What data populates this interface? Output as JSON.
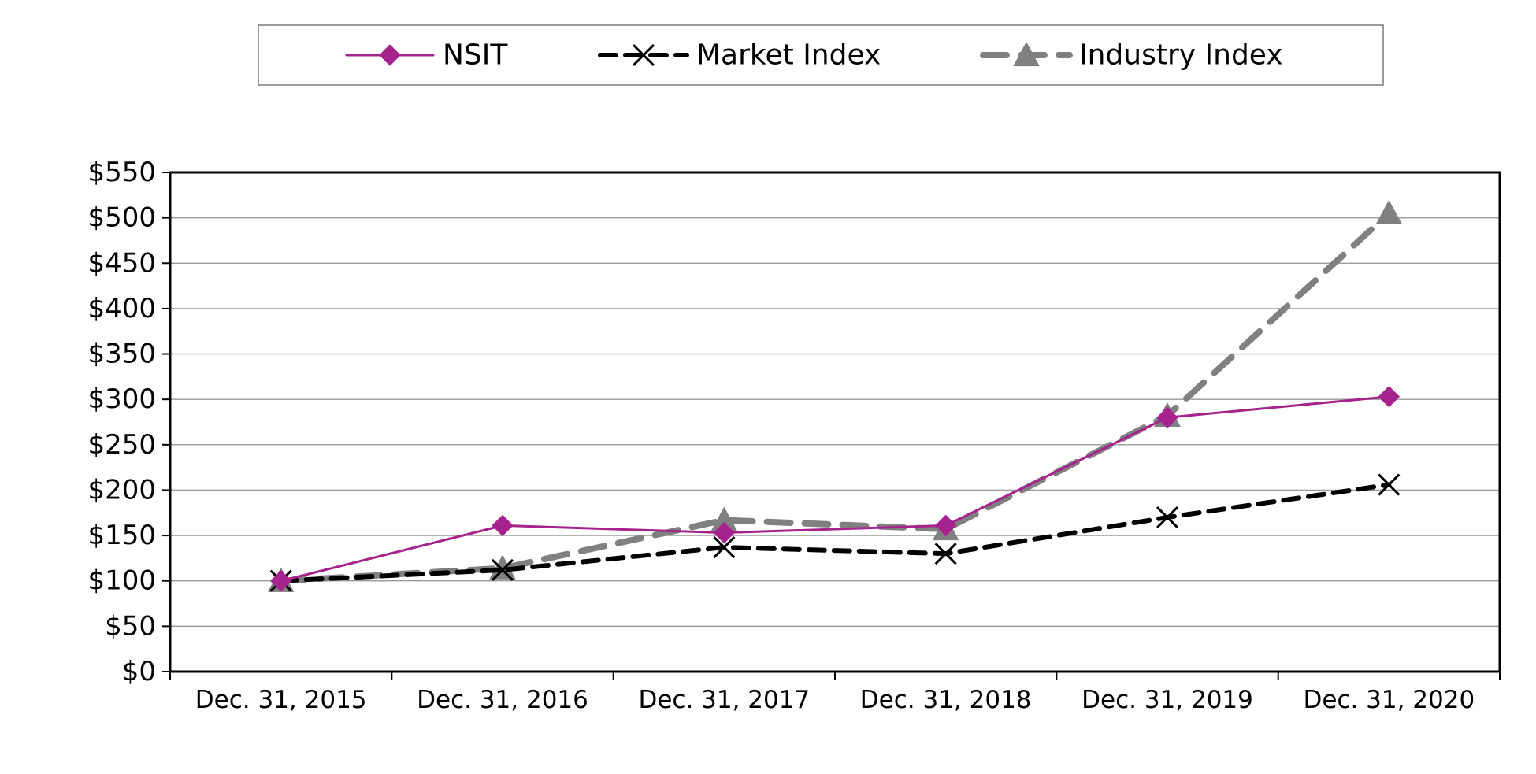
{
  "chart_data": {
    "type": "line",
    "categories": [
      "Dec. 31, 2015",
      "Dec. 31, 2016",
      "Dec. 31, 2017",
      "Dec. 31, 2018",
      "Dec. 31, 2019",
      "Dec. 31, 2020"
    ],
    "series": [
      {
        "name": "NSIT",
        "values": [
          100,
          161,
          153,
          161,
          280,
          303
        ],
        "color": "#a6228c",
        "marker": "diamond",
        "line_style": "solid"
      },
      {
        "name": "Market Index",
        "values": [
          100,
          112,
          137,
          130,
          170,
          206
        ],
        "color": "#000000",
        "marker": "x",
        "line_style": "dashed"
      },
      {
        "name": "Industry Index",
        "values": [
          100,
          114,
          167,
          157,
          282,
          505
        ],
        "color": "#808080",
        "marker": "triangle",
        "line_style": "dashed"
      }
    ],
    "title": "",
    "xlabel": "",
    "ylabel": "",
    "ylim": [
      0,
      550
    ],
    "yticks": [
      0,
      50,
      100,
      150,
      200,
      250,
      300,
      350,
      400,
      450,
      500,
      550
    ],
    "ytick_labels": [
      "$0",
      "$50",
      "$100",
      "$150",
      "$200",
      "$250",
      "$300",
      "$350",
      "$400",
      "$450",
      "$500",
      "$550"
    ],
    "grid": true,
    "legend_position": "top"
  }
}
